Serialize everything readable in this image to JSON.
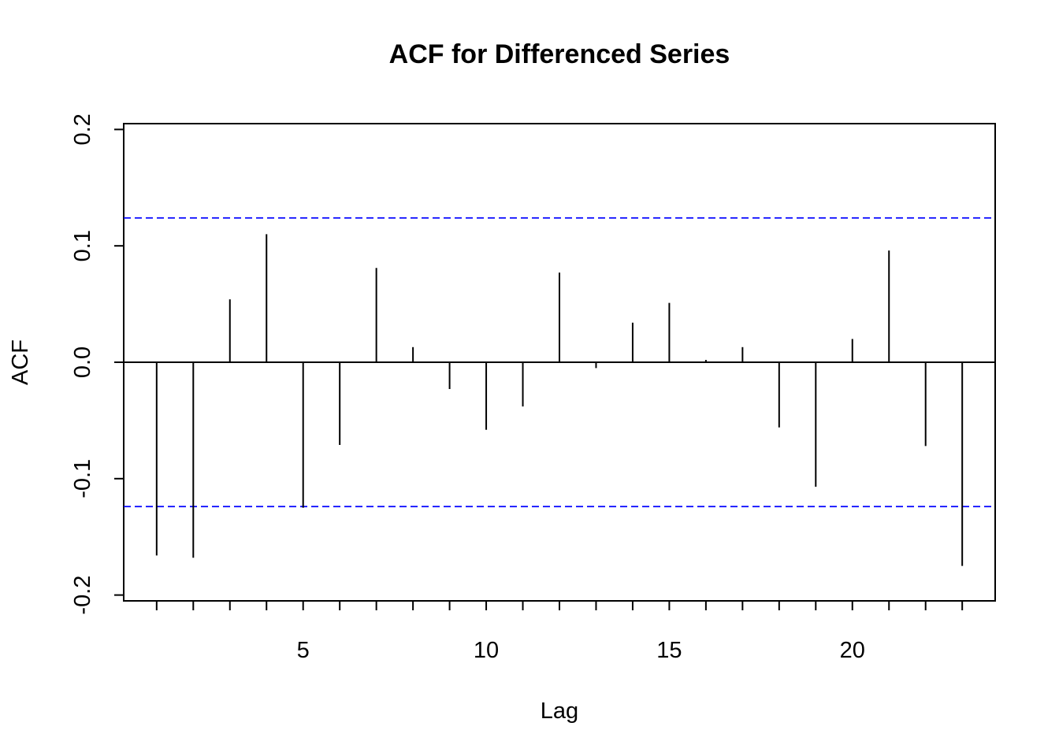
{
  "chart_data": {
    "type": "bar",
    "title": "ACF for Differenced Series",
    "xlabel": "Lag",
    "ylabel": "ACF",
    "xlim": [
      0.1,
      23.9
    ],
    "ylim": [
      -0.205,
      0.205
    ],
    "x_ticks": [
      5,
      10,
      15,
      20
    ],
    "y_ticks": [
      -0.2,
      -0.1,
      0.0,
      0.1,
      0.2
    ],
    "y_tick_labels": [
      "-0.2",
      "-0.1",
      "0.0",
      "0.1",
      "0.2"
    ],
    "confidence_bound": 0.124,
    "confidence_line_color": "#0000ff",
    "line_color": "#000000",
    "grid": false,
    "x": [
      1,
      2,
      3,
      4,
      5,
      6,
      7,
      8,
      9,
      10,
      11,
      12,
      13,
      14,
      15,
      16,
      17,
      18,
      19,
      20,
      21,
      22,
      23
    ],
    "values": [
      -0.166,
      -0.168,
      0.054,
      0.11,
      -0.125,
      -0.071,
      0.081,
      0.013,
      -0.023,
      -0.058,
      -0.038,
      0.077,
      -0.005,
      0.034,
      0.051,
      0.002,
      0.013,
      -0.056,
      -0.107,
      0.02,
      0.096,
      -0.072,
      -0.175
    ]
  }
}
